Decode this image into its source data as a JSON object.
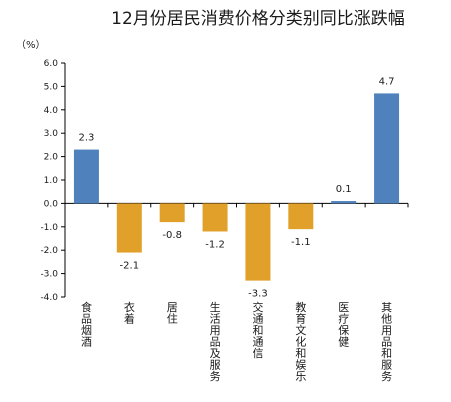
{
  "chart_data": {
    "type": "bar",
    "title": "12月份居民消费价格分类别同比涨跌幅",
    "unit": "（%）",
    "ylim": [
      -4.0,
      6.0
    ],
    "y_ticks": [
      "6.0",
      "5.0",
      "4.0",
      "3.0",
      "2.0",
      "1.0",
      "0.0",
      "-1.0",
      "-2.0",
      "-3.0",
      "-4.0"
    ],
    "categories": [
      "食品烟酒",
      "衣着",
      "居住",
      "生活用品及服务",
      "交通和通信",
      "教育文化和娱乐",
      "医疗保健",
      "其他用品和服务"
    ],
    "values": [
      2.3,
      -2.1,
      -0.8,
      -1.2,
      -3.3,
      -1.1,
      0.1,
      4.7
    ],
    "value_labels": [
      "2.3",
      "-2.1",
      "-0.8",
      "-1.2",
      "-3.3",
      "-1.1",
      "0.1",
      "4.7"
    ],
    "grid": false,
    "legend": "none",
    "colors": {
      "positive": "#4f81bd",
      "negative": "#e0a02a",
      "axis": "#000000",
      "text": "#1a1a1a"
    }
  }
}
